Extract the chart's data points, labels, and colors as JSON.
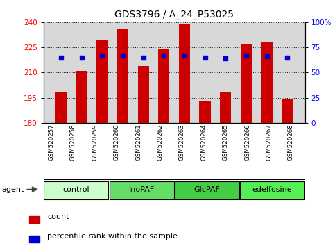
{
  "title": "GDS3796 / A_24_P53025",
  "samples": [
    "GSM520257",
    "GSM520258",
    "GSM520259",
    "GSM520260",
    "GSM520261",
    "GSM520262",
    "GSM520263",
    "GSM520264",
    "GSM520265",
    "GSM520266",
    "GSM520267",
    "GSM520268"
  ],
  "counts": [
    198,
    211,
    229,
    236,
    214,
    224,
    239,
    193,
    198,
    227,
    228,
    194
  ],
  "percentile_ranks": [
    65,
    65,
    67,
    67,
    65,
    67,
    67,
    65,
    64,
    67,
    66,
    65
  ],
  "ymin": 180,
  "ymax": 240,
  "yticks": [
    180,
    195,
    210,
    225,
    240
  ],
  "right_yticks": [
    0,
    25,
    50,
    75,
    100
  ],
  "right_tick_labels": [
    "0",
    "25",
    "50",
    "75",
    "100%"
  ],
  "bar_color": "#cc0000",
  "dot_color": "#0000cc",
  "groups": [
    {
      "label": "control",
      "start": 0,
      "end": 3,
      "color": "#ccffcc"
    },
    {
      "label": "InoPAF",
      "start": 3,
      "end": 6,
      "color": "#66dd66"
    },
    {
      "label": "GlcPAF",
      "start": 6,
      "end": 9,
      "color": "#44cc44"
    },
    {
      "label": "edelfosine",
      "start": 9,
      "end": 12,
      "color": "#55ee55"
    }
  ],
  "agent_label": "agent",
  "legend_count_label": "count",
  "legend_pct_label": "percentile rank within the sample",
  "title_fontsize": 10,
  "tick_fontsize": 7.5,
  "sample_fontsize": 6.2,
  "group_fontsize": 8,
  "legend_fontsize": 8,
  "bg_color": "#d8d8d8",
  "bar_width": 0.55
}
